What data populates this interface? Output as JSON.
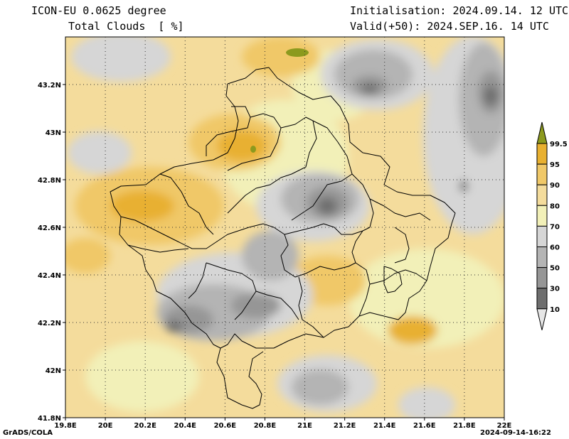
{
  "header": {
    "model": "ICON-EU 0.0625 degree",
    "variable": "Total Clouds  [ %]",
    "initialisation": "Initialisation: 2024.09.14. 12 UTC",
    "valid": "Valid(+50): 2024.SEP.16. 14 UTC"
  },
  "footer": {
    "software": "GrADS/COLA",
    "timestamp": "2024-09-14-16:22"
  },
  "map": {
    "lon_range": [
      19.8,
      22.0
    ],
    "lat_range": [
      41.8,
      43.4
    ],
    "lon_ticks": [
      "19.8E",
      "20E",
      "20.2E",
      "20.4E",
      "20.6E",
      "20.8E",
      "21E",
      "21.2E",
      "21.4E",
      "21.6E",
      "21.8E",
      "22E"
    ],
    "lat_ticks": [
      "41.8N",
      "42N",
      "42.2N",
      "42.4N",
      "42.6N",
      "42.8N",
      "43N",
      "43.2N"
    ],
    "grid": "dotted"
  },
  "colorbar": {
    "labels": [
      "99.5",
      "95",
      "90",
      "80",
      "70",
      "60",
      "50",
      "30",
      "10"
    ],
    "colors": [
      "#8c9a1e",
      "#e8b030",
      "#f0c868",
      "#f4dc9c",
      "#f2f0b8",
      "#d6d6d6",
      "#b4b4b4",
      "#969696",
      "#6e6e6e",
      "#e6e6e6"
    ]
  }
}
